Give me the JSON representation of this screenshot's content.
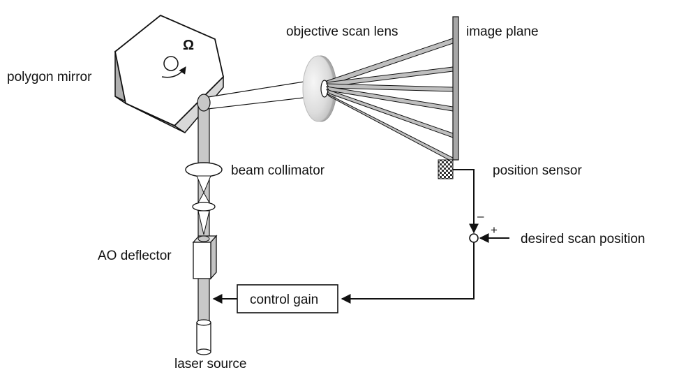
{
  "labels": {
    "polygon_mirror": "polygon mirror",
    "objective_scan_lens": "objective scan lens",
    "image_plane": "image plane",
    "beam_collimator": "beam collimator",
    "position_sensor": "position sensor",
    "desired_scan_position": "desired scan position",
    "ao_deflector": "AO deflector",
    "control_gain": "control gain",
    "laser_source": "laser source",
    "omega": "Ω",
    "minus": "–",
    "plus": "+"
  },
  "colors": {
    "beam_fill": "#c8c8c8",
    "fan_fill": "#bfbfbf",
    "plane_fill": "#a8a8a8",
    "mirror_side": "#b0b0b0",
    "mirror_bottom": "#e2e2e2",
    "stroke": "#111111"
  }
}
